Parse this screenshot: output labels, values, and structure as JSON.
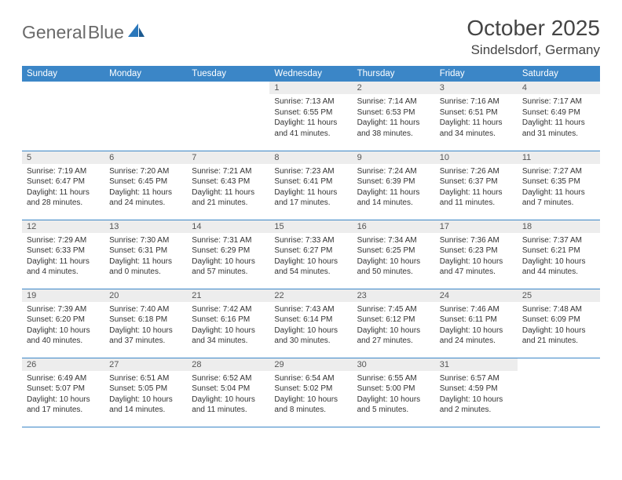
{
  "brand": {
    "text1": "General",
    "text2": "Blue"
  },
  "title": "October 2025",
  "location": "Sindelsdorf, Germany",
  "colors": {
    "header_bg": "#3b86c7",
    "header_text": "#ffffff",
    "daynum_bg": "#ededed",
    "daynum_text": "#555555",
    "border": "#3b86c7",
    "logo_gray": "#6a6a6a",
    "logo_blue": "#2a77bb",
    "body_text": "#333333"
  },
  "dayHeaders": [
    "Sunday",
    "Monday",
    "Tuesday",
    "Wednesday",
    "Thursday",
    "Friday",
    "Saturday"
  ],
  "weeks": [
    [
      {
        "n": "",
        "lines": []
      },
      {
        "n": "",
        "lines": []
      },
      {
        "n": "",
        "lines": []
      },
      {
        "n": "1",
        "lines": [
          "Sunrise: 7:13 AM",
          "Sunset: 6:55 PM",
          "Daylight: 11 hours and 41 minutes."
        ]
      },
      {
        "n": "2",
        "lines": [
          "Sunrise: 7:14 AM",
          "Sunset: 6:53 PM",
          "Daylight: 11 hours and 38 minutes."
        ]
      },
      {
        "n": "3",
        "lines": [
          "Sunrise: 7:16 AM",
          "Sunset: 6:51 PM",
          "Daylight: 11 hours and 34 minutes."
        ]
      },
      {
        "n": "4",
        "lines": [
          "Sunrise: 7:17 AM",
          "Sunset: 6:49 PM",
          "Daylight: 11 hours and 31 minutes."
        ]
      }
    ],
    [
      {
        "n": "5",
        "lines": [
          "Sunrise: 7:19 AM",
          "Sunset: 6:47 PM",
          "Daylight: 11 hours and 28 minutes."
        ]
      },
      {
        "n": "6",
        "lines": [
          "Sunrise: 7:20 AM",
          "Sunset: 6:45 PM",
          "Daylight: 11 hours and 24 minutes."
        ]
      },
      {
        "n": "7",
        "lines": [
          "Sunrise: 7:21 AM",
          "Sunset: 6:43 PM",
          "Daylight: 11 hours and 21 minutes."
        ]
      },
      {
        "n": "8",
        "lines": [
          "Sunrise: 7:23 AM",
          "Sunset: 6:41 PM",
          "Daylight: 11 hours and 17 minutes."
        ]
      },
      {
        "n": "9",
        "lines": [
          "Sunrise: 7:24 AM",
          "Sunset: 6:39 PM",
          "Daylight: 11 hours and 14 minutes."
        ]
      },
      {
        "n": "10",
        "lines": [
          "Sunrise: 7:26 AM",
          "Sunset: 6:37 PM",
          "Daylight: 11 hours and 11 minutes."
        ]
      },
      {
        "n": "11",
        "lines": [
          "Sunrise: 7:27 AM",
          "Sunset: 6:35 PM",
          "Daylight: 11 hours and 7 minutes."
        ]
      }
    ],
    [
      {
        "n": "12",
        "lines": [
          "Sunrise: 7:29 AM",
          "Sunset: 6:33 PM",
          "Daylight: 11 hours and 4 minutes."
        ]
      },
      {
        "n": "13",
        "lines": [
          "Sunrise: 7:30 AM",
          "Sunset: 6:31 PM",
          "Daylight: 11 hours and 0 minutes."
        ]
      },
      {
        "n": "14",
        "lines": [
          "Sunrise: 7:31 AM",
          "Sunset: 6:29 PM",
          "Daylight: 10 hours and 57 minutes."
        ]
      },
      {
        "n": "15",
        "lines": [
          "Sunrise: 7:33 AM",
          "Sunset: 6:27 PM",
          "Daylight: 10 hours and 54 minutes."
        ]
      },
      {
        "n": "16",
        "lines": [
          "Sunrise: 7:34 AM",
          "Sunset: 6:25 PM",
          "Daylight: 10 hours and 50 minutes."
        ]
      },
      {
        "n": "17",
        "lines": [
          "Sunrise: 7:36 AM",
          "Sunset: 6:23 PM",
          "Daylight: 10 hours and 47 minutes."
        ]
      },
      {
        "n": "18",
        "lines": [
          "Sunrise: 7:37 AM",
          "Sunset: 6:21 PM",
          "Daylight: 10 hours and 44 minutes."
        ]
      }
    ],
    [
      {
        "n": "19",
        "lines": [
          "Sunrise: 7:39 AM",
          "Sunset: 6:20 PM",
          "Daylight: 10 hours and 40 minutes."
        ]
      },
      {
        "n": "20",
        "lines": [
          "Sunrise: 7:40 AM",
          "Sunset: 6:18 PM",
          "Daylight: 10 hours and 37 minutes."
        ]
      },
      {
        "n": "21",
        "lines": [
          "Sunrise: 7:42 AM",
          "Sunset: 6:16 PM",
          "Daylight: 10 hours and 34 minutes."
        ]
      },
      {
        "n": "22",
        "lines": [
          "Sunrise: 7:43 AM",
          "Sunset: 6:14 PM",
          "Daylight: 10 hours and 30 minutes."
        ]
      },
      {
        "n": "23",
        "lines": [
          "Sunrise: 7:45 AM",
          "Sunset: 6:12 PM",
          "Daylight: 10 hours and 27 minutes."
        ]
      },
      {
        "n": "24",
        "lines": [
          "Sunrise: 7:46 AM",
          "Sunset: 6:11 PM",
          "Daylight: 10 hours and 24 minutes."
        ]
      },
      {
        "n": "25",
        "lines": [
          "Sunrise: 7:48 AM",
          "Sunset: 6:09 PM",
          "Daylight: 10 hours and 21 minutes."
        ]
      }
    ],
    [
      {
        "n": "26",
        "lines": [
          "Sunrise: 6:49 AM",
          "Sunset: 5:07 PM",
          "Daylight: 10 hours and 17 minutes."
        ]
      },
      {
        "n": "27",
        "lines": [
          "Sunrise: 6:51 AM",
          "Sunset: 5:05 PM",
          "Daylight: 10 hours and 14 minutes."
        ]
      },
      {
        "n": "28",
        "lines": [
          "Sunrise: 6:52 AM",
          "Sunset: 5:04 PM",
          "Daylight: 10 hours and 11 minutes."
        ]
      },
      {
        "n": "29",
        "lines": [
          "Sunrise: 6:54 AM",
          "Sunset: 5:02 PM",
          "Daylight: 10 hours and 8 minutes."
        ]
      },
      {
        "n": "30",
        "lines": [
          "Sunrise: 6:55 AM",
          "Sunset: 5:00 PM",
          "Daylight: 10 hours and 5 minutes."
        ]
      },
      {
        "n": "31",
        "lines": [
          "Sunrise: 6:57 AM",
          "Sunset: 4:59 PM",
          "Daylight: 10 hours and 2 minutes."
        ]
      },
      {
        "n": "",
        "lines": []
      }
    ]
  ]
}
